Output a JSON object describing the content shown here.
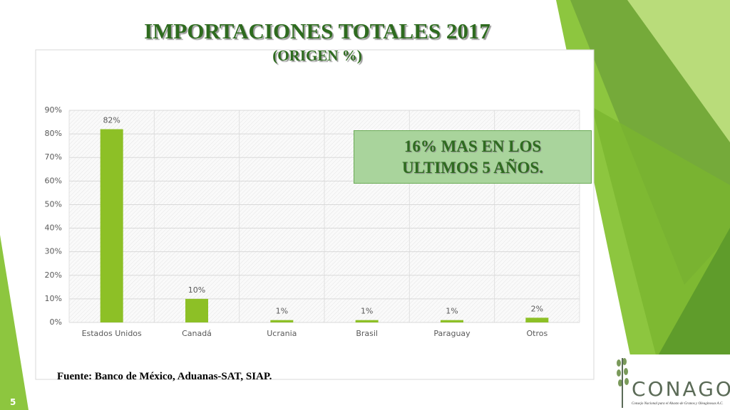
{
  "title": "IMPORTACIONES TOTALES 2017",
  "subtitle": "(ORIGEN %)",
  "callout": "16% MAS EN LOS ULTIMOS 5 AÑOS.",
  "source": "Fuente: Banco de México, Aduanas-SAT, SIAP.",
  "page_number": "5",
  "logo": {
    "name": "CONAGO",
    "tagline": "Consejo Nacional para el Abasto de Granos y Oleaginosas A.C."
  },
  "chart_data": {
    "type": "bar",
    "categories": [
      "Estados Unidos",
      "Canadá",
      "Ucrania",
      "Brasil",
      "Paraguay",
      "Otros"
    ],
    "values": [
      82,
      10,
      1,
      1,
      1,
      2
    ],
    "value_labels": [
      "82%",
      "10%",
      "1%",
      "1%",
      "1%",
      "2%"
    ],
    "color": "#8dc026",
    "ylim": [
      0,
      90
    ],
    "yticks": [
      {
        "value": 0,
        "label": "0%"
      },
      {
        "value": 10,
        "label": "10%"
      },
      {
        "value": 20,
        "label": "20%"
      },
      {
        "value": 30,
        "label": "30%"
      },
      {
        "value": 40,
        "label": "40%"
      },
      {
        "value": 50,
        "label": "50%"
      },
      {
        "value": 60,
        "label": "60%"
      },
      {
        "value": 70,
        "label": "70%"
      },
      {
        "value": 80,
        "label": "80%"
      },
      {
        "value": 90,
        "label": "90%"
      }
    ],
    "grid": true
  }
}
